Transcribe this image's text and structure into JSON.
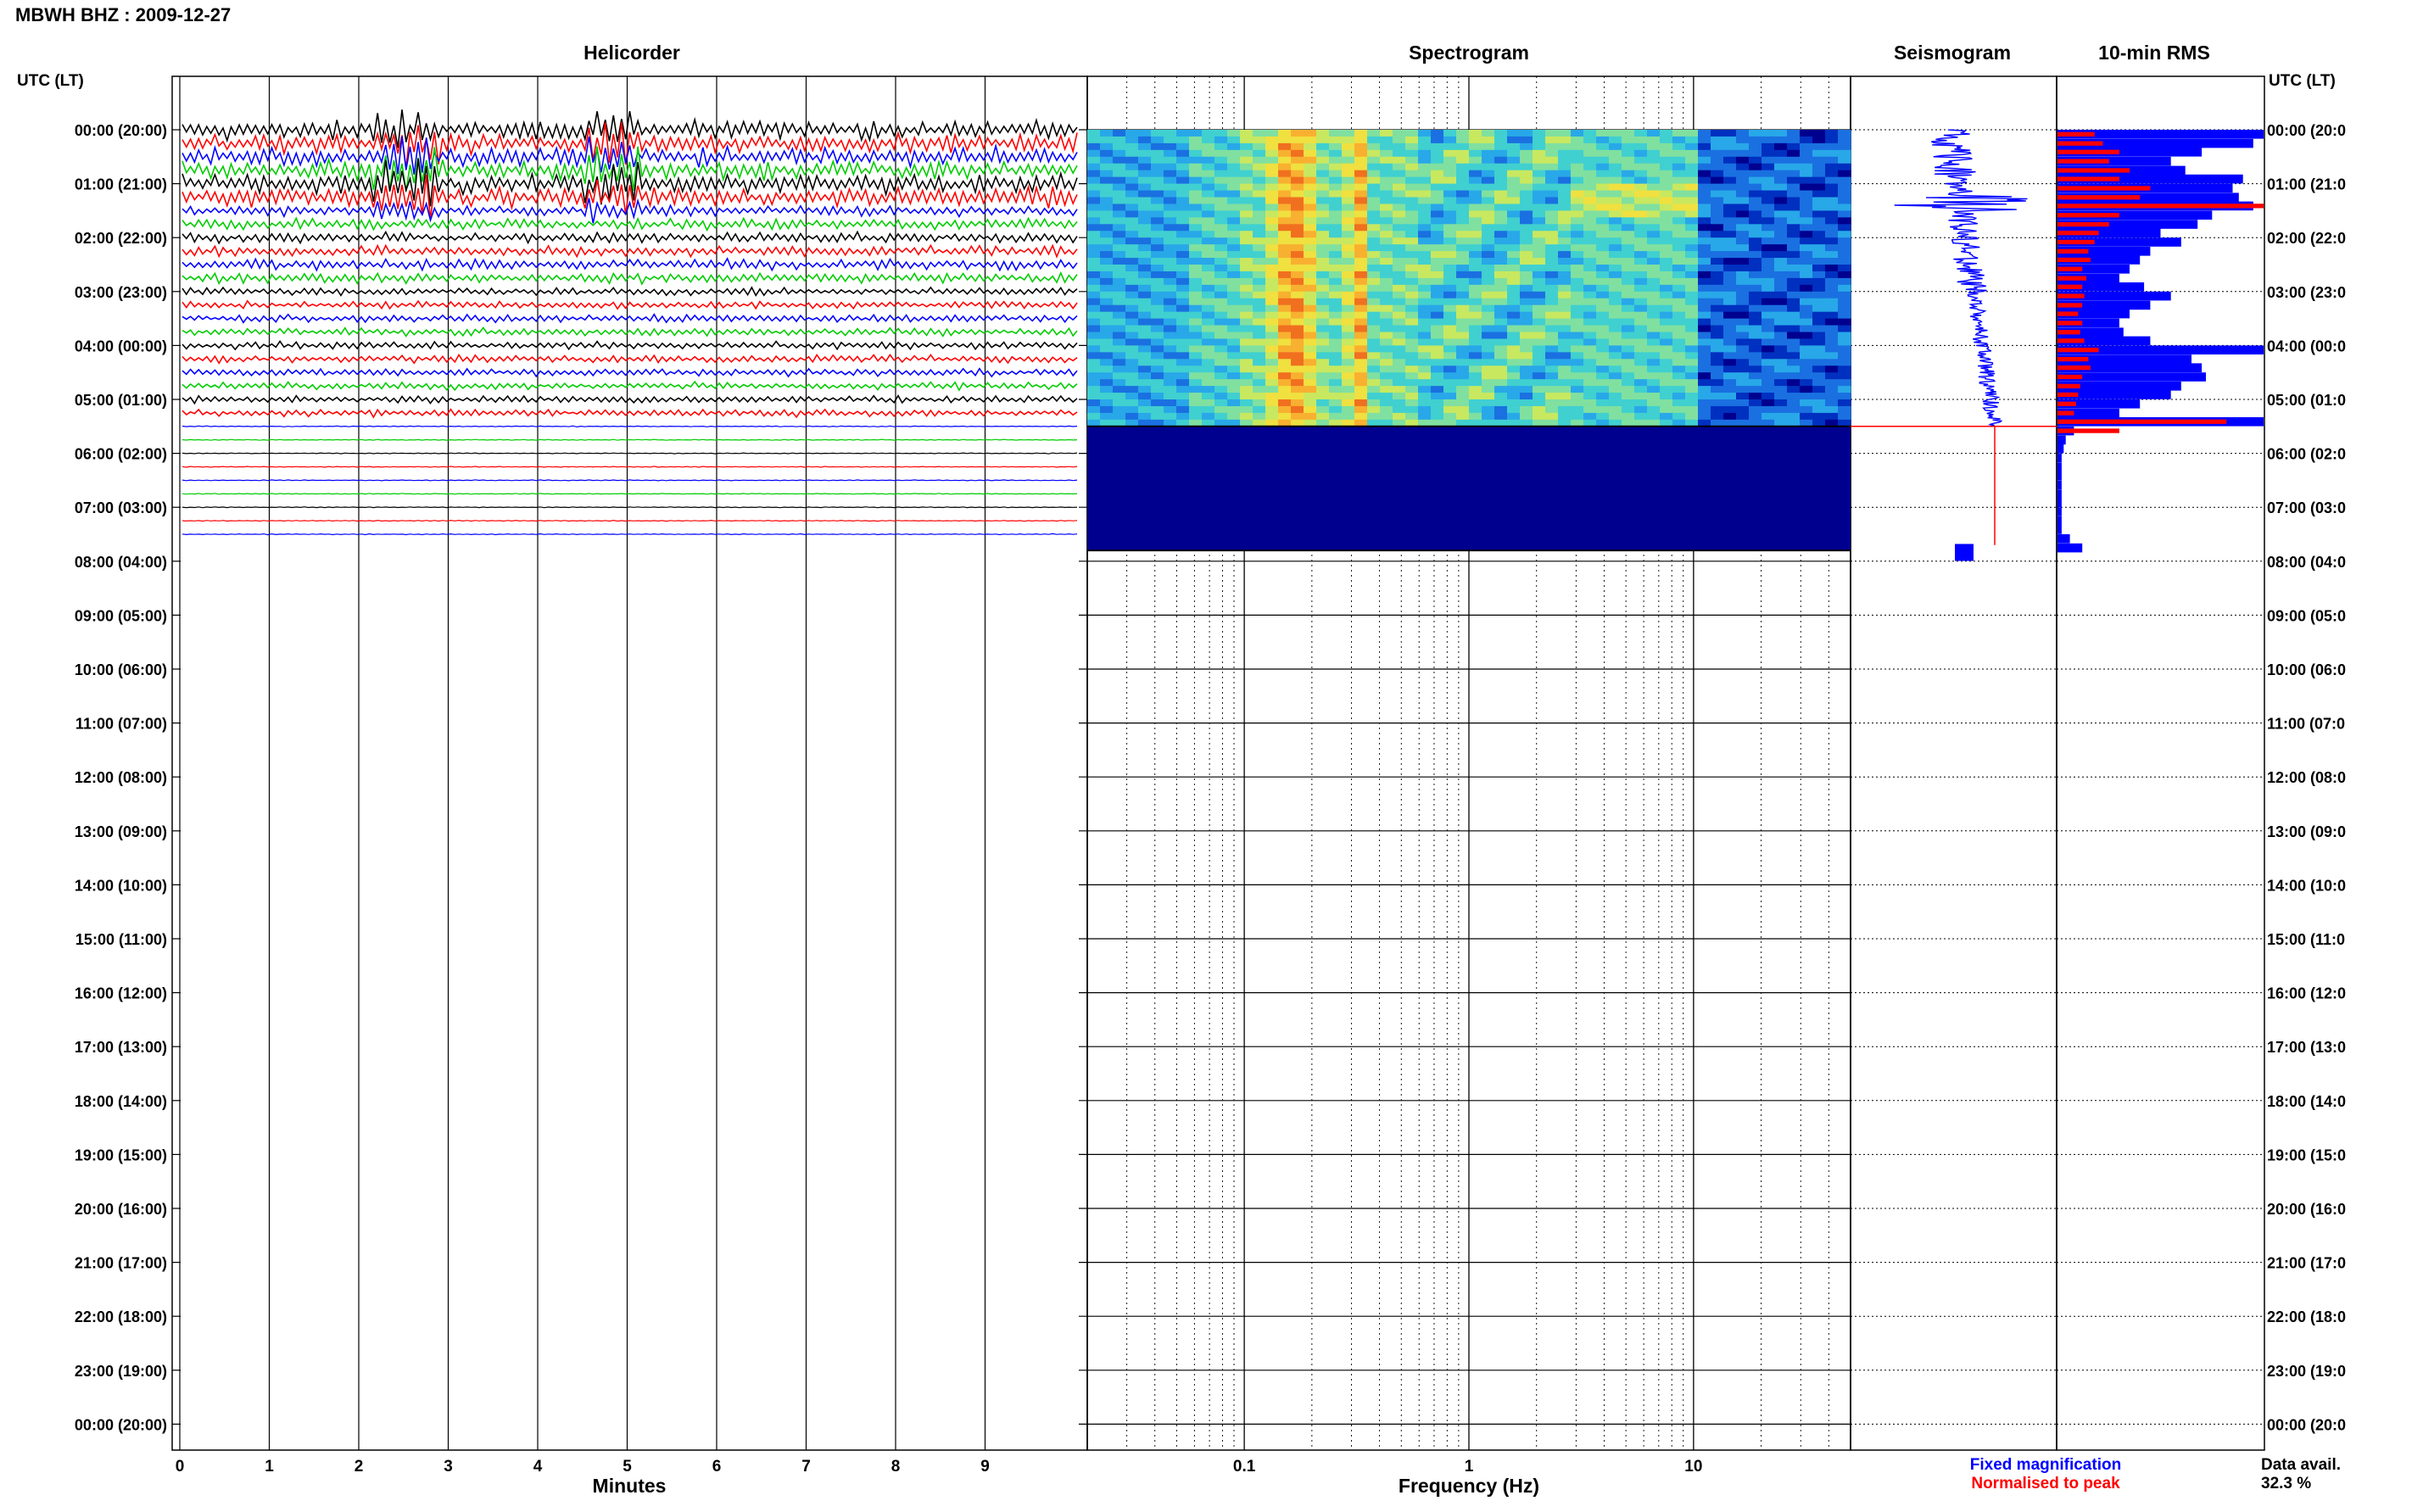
{
  "title": "MBWH BHZ : 2009-12-27",
  "panels": {
    "helicorder": "Helicorder",
    "spectrogram": "Spectrogram",
    "seismogram": "Seismogram",
    "rms": "10-min RMS"
  },
  "axis": {
    "left_label": "UTC (LT)",
    "right_label": "UTC (LT)",
    "x_minutes_label": "Minutes",
    "x_freq_label": "Frequency (Hz)"
  },
  "legend": {
    "fixed": "Fixed magnification",
    "normalised": "Normalised to peak",
    "fixed_color": "#0000ff",
    "normalised_color": "#ff0000"
  },
  "data_avail": {
    "label": "Data avail.",
    "value": "32.3 %"
  },
  "chart_data": {
    "type": "heatmap",
    "time_ticks": [
      "00:00 (20:00)",
      "01:00 (21:00)",
      "02:00 (22:00)",
      "03:00 (23:00)",
      "04:00 (00:00)",
      "05:00 (01:00)",
      "06:00 (02:00)",
      "07:00 (03:00)",
      "08:00 (04:00)",
      "09:00 (05:00)",
      "10:00 (06:00)",
      "11:00 (07:00)",
      "12:00 (08:00)",
      "13:00 (09:00)",
      "14:00 (10:00)",
      "15:00 (11:00)",
      "16:00 (12:00)",
      "17:00 (13:00)",
      "18:00 (14:00)",
      "19:00 (15:00)",
      "20:00 (16:00)",
      "21:00 (17:00)",
      "22:00 (18:00)",
      "23:00 (19:00)",
      "00:00 (20:00)"
    ],
    "right_time_ticks": [
      "00:00 (20:0",
      "01:00 (21:0",
      "02:00 (22:0",
      "03:00 (23:0",
      "04:00 (00:0",
      "05:00 (01:0",
      "06:00 (02:0",
      "07:00 (03:0",
      "08:00 (04:0",
      "09:00 (05:0",
      "10:00 (06:0",
      "11:00 (07:0",
      "12:00 (08:0",
      "13:00 (09:0",
      "14:00 (10:0",
      "15:00 (11:0",
      "16:00 (12:0",
      "17:00 (13:0",
      "18:00 (14:0",
      "19:00 (15:0",
      "20:00 (16:0",
      "21:00 (17:0",
      "22:00 (18:0",
      "23:00 (19:0",
      "00:00 (20:0"
    ],
    "minute_ticks": [
      "0",
      "1",
      "2",
      "3",
      "4",
      "5",
      "6",
      "7",
      "8",
      "9"
    ],
    "freq_ticks": [
      "0.1",
      "1",
      "10"
    ],
    "freq_range_hz": [
      0.02,
      50
    ],
    "data_end_hour": 7.8,
    "trace_colors": [
      "#000000",
      "#ff0000",
      "#0000ff",
      "#00cc00"
    ],
    "rms_blue": [
      {
        "h": 0.0,
        "v": 1.0
      },
      {
        "h": 0.17,
        "v": 0.95
      },
      {
        "h": 0.33,
        "v": 0.7
      },
      {
        "h": 0.5,
        "v": 0.55
      },
      {
        "h": 0.67,
        "v": 0.62
      },
      {
        "h": 0.83,
        "v": 0.9
      },
      {
        "h": 1.0,
        "v": 0.85
      },
      {
        "h": 1.17,
        "v": 0.88
      },
      {
        "h": 1.33,
        "v": 0.95
      },
      {
        "h": 1.5,
        "v": 0.75
      },
      {
        "h": 1.67,
        "v": 0.68
      },
      {
        "h": 1.83,
        "v": 0.5
      },
      {
        "h": 2.0,
        "v": 0.6
      },
      {
        "h": 2.17,
        "v": 0.45
      },
      {
        "h": 2.33,
        "v": 0.4
      },
      {
        "h": 2.5,
        "v": 0.35
      },
      {
        "h": 2.67,
        "v": 0.3
      },
      {
        "h": 2.83,
        "v": 0.42
      },
      {
        "h": 3.0,
        "v": 0.55
      },
      {
        "h": 3.17,
        "v": 0.45
      },
      {
        "h": 3.33,
        "v": 0.35
      },
      {
        "h": 3.5,
        "v": 0.3
      },
      {
        "h": 3.67,
        "v": 0.32
      },
      {
        "h": 3.83,
        "v": 0.45
      },
      {
        "h": 4.0,
        "v": 1.0
      },
      {
        "h": 4.17,
        "v": 0.65
      },
      {
        "h": 4.33,
        "v": 0.7
      },
      {
        "h": 4.5,
        "v": 0.72
      },
      {
        "h": 4.67,
        "v": 0.6
      },
      {
        "h": 4.83,
        "v": 0.55
      },
      {
        "h": 5.0,
        "v": 0.4
      },
      {
        "h": 5.17,
        "v": 0.3
      },
      {
        "h": 5.33,
        "v": 1.0
      },
      {
        "h": 5.5,
        "v": 0.08
      },
      {
        "h": 5.67,
        "v": 0.04
      },
      {
        "h": 5.83,
        "v": 0.03
      },
      {
        "h": 6.0,
        "v": 0.02
      },
      {
        "h": 6.17,
        "v": 0.02
      },
      {
        "h": 6.33,
        "v": 0.02
      },
      {
        "h": 6.5,
        "v": 0.02
      },
      {
        "h": 6.67,
        "v": 0.02
      },
      {
        "h": 6.83,
        "v": 0.02
      },
      {
        "h": 7.0,
        "v": 0.02
      },
      {
        "h": 7.17,
        "v": 0.02
      },
      {
        "h": 7.33,
        "v": 0.02
      },
      {
        "h": 7.5,
        "v": 0.06
      },
      {
        "h": 7.67,
        "v": 0.12
      }
    ],
    "rms_red": [
      {
        "h": 0.0,
        "v": 0.18
      },
      {
        "h": 0.17,
        "v": 0.22
      },
      {
        "h": 0.33,
        "v": 0.3
      },
      {
        "h": 0.5,
        "v": 0.25
      },
      {
        "h": 0.67,
        "v": 0.35
      },
      {
        "h": 0.83,
        "v": 0.3
      },
      {
        "h": 1.0,
        "v": 0.45
      },
      {
        "h": 1.17,
        "v": 0.4
      },
      {
        "h": 1.33,
        "v": 1.0
      },
      {
        "h": 1.5,
        "v": 0.3
      },
      {
        "h": 1.67,
        "v": 0.25
      },
      {
        "h": 1.83,
        "v": 0.2
      },
      {
        "h": 2.0,
        "v": 0.18
      },
      {
        "h": 2.17,
        "v": 0.15
      },
      {
        "h": 2.33,
        "v": 0.16
      },
      {
        "h": 2.5,
        "v": 0.12
      },
      {
        "h": 2.67,
        "v": 0.14
      },
      {
        "h": 2.83,
        "v": 0.12
      },
      {
        "h": 3.0,
        "v": 0.13
      },
      {
        "h": 3.17,
        "v": 0.12
      },
      {
        "h": 3.33,
        "v": 0.1
      },
      {
        "h": 3.5,
        "v": 0.12
      },
      {
        "h": 3.67,
        "v": 0.11
      },
      {
        "h": 3.83,
        "v": 0.13
      },
      {
        "h": 4.0,
        "v": 0.2
      },
      {
        "h": 4.17,
        "v": 0.15
      },
      {
        "h": 4.33,
        "v": 0.16
      },
      {
        "h": 4.5,
        "v": 0.12
      },
      {
        "h": 4.67,
        "v": 0.11
      },
      {
        "h": 4.83,
        "v": 0.1
      },
      {
        "h": 5.0,
        "v": 0.09
      },
      {
        "h": 5.17,
        "v": 0.08
      },
      {
        "h": 5.33,
        "v": 0.82
      },
      {
        "h": 5.5,
        "v": 0.3
      }
    ]
  }
}
